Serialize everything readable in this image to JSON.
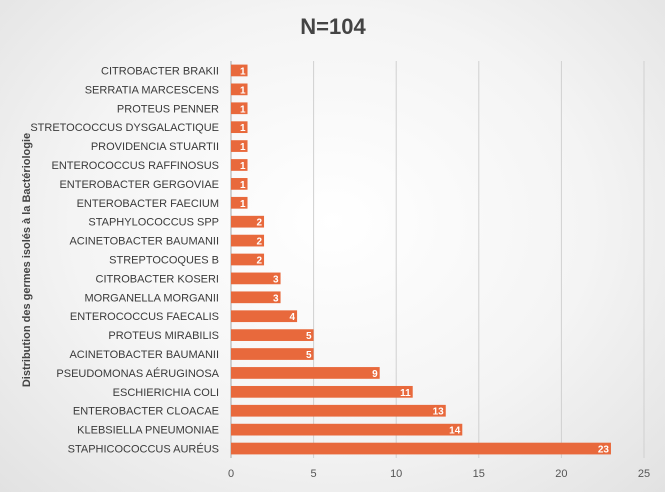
{
  "chart_data": {
    "type": "bar",
    "orientation": "horizontal",
    "title": "N=104",
    "xlabel": "",
    "ylabel": "Distribution des germes isolés à la Bactériologie",
    "categories": [
      "CITROBACTER BRAKII",
      "SERRATIA MARCESCENS",
      "PROTEUS PENNER",
      "STRETOCOCCUS DYSGALACTIQUE",
      "PROVIDENCIA STUARTII",
      "ENTEROCOCCUS RAFFINOSUS",
      "ENTEROBACTER GERGOVIAE",
      "ENTEROBACTER FAECIUM",
      "STAPHYLOCOCCUS SPP",
      "ACINETOBACTER BAUMANII",
      "STREPTOCOQUES B",
      "CITROBACTER KOSERI",
      "MORGANELLA MORGANII",
      "ENTEROCOCCUS FAECALIS",
      "PROTEUS MIRABILIS",
      "ACINETOBACTER BAUMANII",
      "PSEUDOMONAS AÉRUGINOSA",
      "ESCHIERICHIA COLI",
      "ENTEROBACTER CLOACAE",
      "KLEBSIELLA PNEUMONIAE",
      "STAPHICOCOCCUS AURÉUS"
    ],
    "values": [
      1,
      1,
      1,
      1,
      1,
      1,
      1,
      1,
      2,
      2,
      2,
      3,
      3,
      4,
      5,
      5,
      9,
      11,
      13,
      14,
      23
    ],
    "xlim": [
      0,
      25
    ],
    "xticks": [
      0,
      5,
      10,
      15,
      20,
      25
    ],
    "grid": true,
    "legend": "none",
    "data_labels": true,
    "bar_color": "#e8693c"
  }
}
